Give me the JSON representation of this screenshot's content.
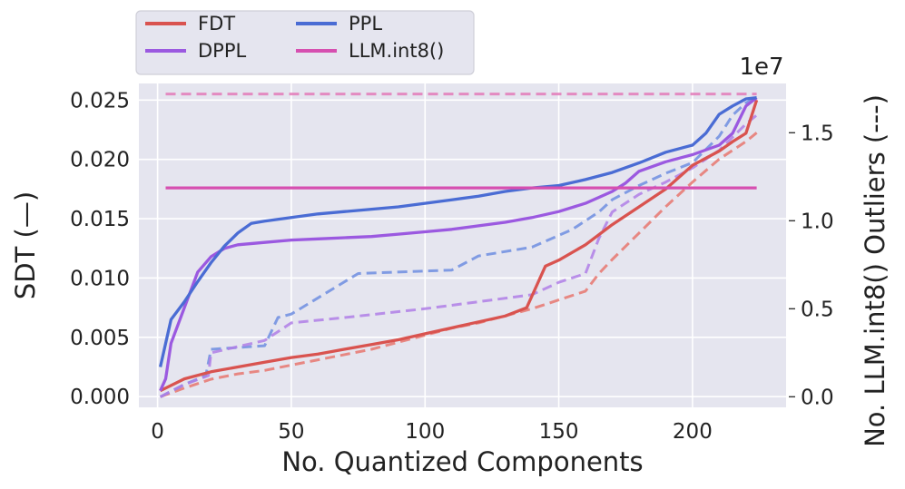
{
  "chart_data": {
    "type": "line",
    "xlabel": "No. Quantized Components",
    "ylabel": "SDT (—)",
    "y2label": "No. LLM.int8() Outliers (---)",
    "y2_offset_label": "1e7",
    "xlim": [
      -7,
      235
    ],
    "ylim": [
      -0.0009,
      0.0264
    ],
    "y2lim": [
      -0.06,
      1.78
    ],
    "x_ticks": [
      0,
      50,
      100,
      150,
      200
    ],
    "x_tick_labels": [
      "0",
      "50",
      "100",
      "150",
      "200"
    ],
    "y_ticks": [
      0.0,
      0.005,
      0.01,
      0.015,
      0.02,
      0.025
    ],
    "y_tick_labels": [
      "0.000",
      "0.005",
      "0.010",
      "0.015",
      "0.020",
      "0.025"
    ],
    "y2_ticks": [
      0.0,
      0.5,
      1.0,
      1.5
    ],
    "y2_tick_labels": [
      "0.0",
      "0.5",
      "1.0",
      "1.5"
    ],
    "grid": true,
    "legend_position": "top-left-outside",
    "legend": [
      {
        "label": "FDT",
        "color": "#d9534f"
      },
      {
        "label": "PPL",
        "color": "#4a6cd4"
      },
      {
        "label": "DPPL",
        "color": "#9b59e0"
      },
      {
        "label": "LLM.int8()",
        "color": "#d64fb0"
      }
    ],
    "series": [
      {
        "name": "FDT",
        "axis": "left",
        "style": "solid",
        "color": "#d9534f",
        "x": [
          1,
          10,
          20,
          30,
          40,
          50,
          60,
          70,
          80,
          90,
          100,
          110,
          120,
          130,
          138,
          142,
          145,
          150,
          160,
          170,
          180,
          190,
          200,
          210,
          215,
          220,
          224
        ],
        "y": [
          0.0005,
          0.0015,
          0.0021,
          0.0025,
          0.0029,
          0.0033,
          0.0036,
          0.004,
          0.0044,
          0.0048,
          0.0053,
          0.0058,
          0.0063,
          0.0068,
          0.0075,
          0.0095,
          0.011,
          0.0115,
          0.0128,
          0.0145,
          0.016,
          0.0175,
          0.0195,
          0.0207,
          0.0215,
          0.0222,
          0.025
        ]
      },
      {
        "name": "PPL",
        "axis": "left",
        "style": "solid",
        "color": "#4a6cd4",
        "x": [
          1,
          3,
          5,
          10,
          15,
          20,
          25,
          30,
          35,
          40,
          50,
          60,
          70,
          80,
          90,
          100,
          110,
          120,
          130,
          140,
          150,
          160,
          170,
          180,
          190,
          200,
          205,
          210,
          215,
          220,
          224
        ],
        "y": [
          0.0025,
          0.0045,
          0.0065,
          0.008,
          0.0097,
          0.0113,
          0.0127,
          0.0138,
          0.0146,
          0.0148,
          0.0151,
          0.0154,
          0.0156,
          0.0158,
          0.016,
          0.0163,
          0.0166,
          0.0169,
          0.0173,
          0.0176,
          0.0178,
          0.0183,
          0.0189,
          0.0197,
          0.0206,
          0.0212,
          0.0222,
          0.0238,
          0.0245,
          0.0251,
          0.0252
        ]
      },
      {
        "name": "DPPL",
        "axis": "left",
        "style": "solid",
        "color": "#9b59e0",
        "x": [
          1,
          3,
          5,
          10,
          15,
          20,
          25,
          30,
          40,
          50,
          60,
          70,
          80,
          90,
          100,
          110,
          120,
          130,
          140,
          150,
          160,
          170,
          175,
          180,
          190,
          200,
          210,
          215,
          220,
          224
        ],
        "y": [
          0.0005,
          0.0015,
          0.0045,
          0.0075,
          0.0105,
          0.0118,
          0.0125,
          0.0128,
          0.013,
          0.0132,
          0.0133,
          0.0134,
          0.0135,
          0.0137,
          0.0139,
          0.0141,
          0.0144,
          0.0147,
          0.0151,
          0.0156,
          0.0163,
          0.0173,
          0.018,
          0.019,
          0.0198,
          0.0204,
          0.0212,
          0.0222,
          0.0245,
          0.0252
        ]
      },
      {
        "name": "LLM.int8()",
        "axis": "left",
        "style": "solid",
        "color": "#d64fb0",
        "x": [
          3,
          224
        ],
        "y": [
          0.0176,
          0.0176
        ]
      },
      {
        "name": "FDT",
        "axis": "right",
        "style": "dashed",
        "color": "#e8776f",
        "x": [
          1,
          10,
          20,
          30,
          40,
          50,
          60,
          70,
          80,
          90,
          100,
          110,
          120,
          130,
          140,
          150,
          160,
          165,
          170,
          180,
          190,
          200,
          210,
          220,
          224
        ],
        "y": [
          0.0,
          0.05,
          0.1,
          0.13,
          0.15,
          0.18,
          0.21,
          0.24,
          0.27,
          0.31,
          0.35,
          0.39,
          0.42,
          0.46,
          0.5,
          0.55,
          0.6,
          0.7,
          0.78,
          0.93,
          1.08,
          1.22,
          1.35,
          1.45,
          1.5
        ]
      },
      {
        "name": "PPL",
        "axis": "right",
        "style": "dashed",
        "color": "#6f8ee0",
        "x": [
          1,
          10,
          18,
          20,
          40,
          45,
          50,
          75,
          110,
          120,
          140,
          155,
          160,
          165,
          170,
          180,
          190,
          200,
          210,
          215,
          220,
          224
        ],
        "y": [
          0.0,
          0.07,
          0.12,
          0.27,
          0.29,
          0.45,
          0.47,
          0.7,
          0.72,
          0.8,
          0.85,
          0.95,
          1.0,
          1.05,
          1.12,
          1.2,
          1.27,
          1.33,
          1.48,
          1.6,
          1.67,
          1.7
        ]
      },
      {
        "name": "DPPL",
        "axis": "right",
        "style": "dashed",
        "color": "#b07fe6",
        "x": [
          1,
          10,
          19,
          20,
          40,
          50,
          70,
          100,
          120,
          140,
          150,
          160,
          165,
          170,
          180,
          190,
          200,
          210,
          220,
          224
        ],
        "y": [
          0.0,
          0.07,
          0.12,
          0.25,
          0.32,
          0.42,
          0.45,
          0.5,
          0.54,
          0.58,
          0.65,
          0.7,
          0.9,
          1.05,
          1.15,
          1.22,
          1.3,
          1.4,
          1.55,
          1.6
        ]
      },
      {
        "name": "LLM.int8()",
        "axis": "right",
        "style": "dashed",
        "color": "#e37ab8",
        "x": [
          3,
          224
        ],
        "y": [
          1.72,
          1.72
        ]
      }
    ]
  }
}
